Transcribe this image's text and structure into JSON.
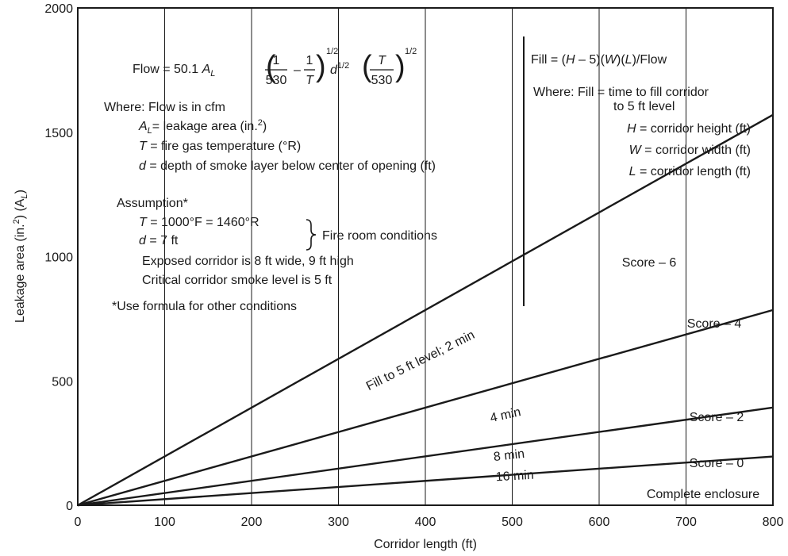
{
  "chart_data": {
    "type": "line",
    "xlabel": "Corridor length (ft)",
    "ylabel_main": "Leakage area (in.",
    "ylabel_sup": "2",
    "ylabel_tail": ") (A",
    "ylabel_sub": "L",
    "ylabel_close": ")",
    "xlim": [
      0,
      800
    ],
    "ylim": [
      0,
      2000
    ],
    "x_ticks": [
      "0",
      "100",
      "200",
      "300",
      "400",
      "500",
      "600",
      "700",
      "800"
    ],
    "y_ticks": [
      "0",
      "500",
      "1000",
      "1500",
      "2000"
    ],
    "grid": "vertical",
    "series": [
      {
        "name": "Fill to 5 ft level; 2 min",
        "x": [
          0,
          800
        ],
        "y": [
          0,
          1570
        ]
      },
      {
        "name": "4 min",
        "x": [
          0,
          800
        ],
        "y": [
          0,
          785
        ]
      },
      {
        "name": "8 min",
        "x": [
          0,
          800
        ],
        "y": [
          0,
          393
        ]
      },
      {
        "name": "16 min",
        "x": [
          0,
          800
        ],
        "y": [
          0,
          196
        ]
      }
    ],
    "zone_labels": [
      "Score – 6",
      "Score – 4",
      "Score – 2",
      "Score – 0",
      "Complete enclosure"
    ]
  },
  "annotations": {
    "formula_flow_lhs": "Flow = 50.1 ",
    "formula_al": "A",
    "formula_al_sub": "L",
    "formula_one": "1",
    "formula_530": "530",
    "formula_minus": "–",
    "formula_T": "T",
    "formula_half": "1/2",
    "formula_d": "d",
    "where_flow": "Where: Flow is in cfm",
    "al_def_sym": "A",
    "al_def_sub": "L",
    "al_def_text": "= leakage area (in.",
    "al_def_sup": "2",
    "al_def_close": ")",
    "t_def_sym": "T",
    "t_def_text": " = fire gas temperature (°R)",
    "d_def_sym": "d",
    "d_def_text": " = depth of smoke layer below center of opening (ft)",
    "assumption": "Assumption*",
    "assume_t_sym": "T",
    "assume_t_text": " = 1000°F = 1460°R",
    "assume_d_sym": "d",
    "assume_d_text": " = 7 ft",
    "fire_room": "Fire room conditions",
    "exposed": "Exposed corridor is 8 ft wide, 9 ft high",
    "critical": "Critical corridor smoke level is 5 ft",
    "use_formula": "*Use formula for other conditions",
    "fill_a": "Fill = (",
    "fill_H": "H",
    "fill_b": " – 5)(",
    "fill_W": "W",
    "fill_c": ")(",
    "fill_L": "L",
    "fill_d": ")/Flow",
    "where_fill_1": "Where: Fill = time to fill corridor",
    "where_fill_2": "to 5 ft level",
    "h_sym": "H",
    "h_text": " = corridor height (ft)",
    "w_sym": "W",
    "w_text": " = corridor width (ft)",
    "l_sym": "L",
    "l_text": " = corridor length (ft)"
  }
}
